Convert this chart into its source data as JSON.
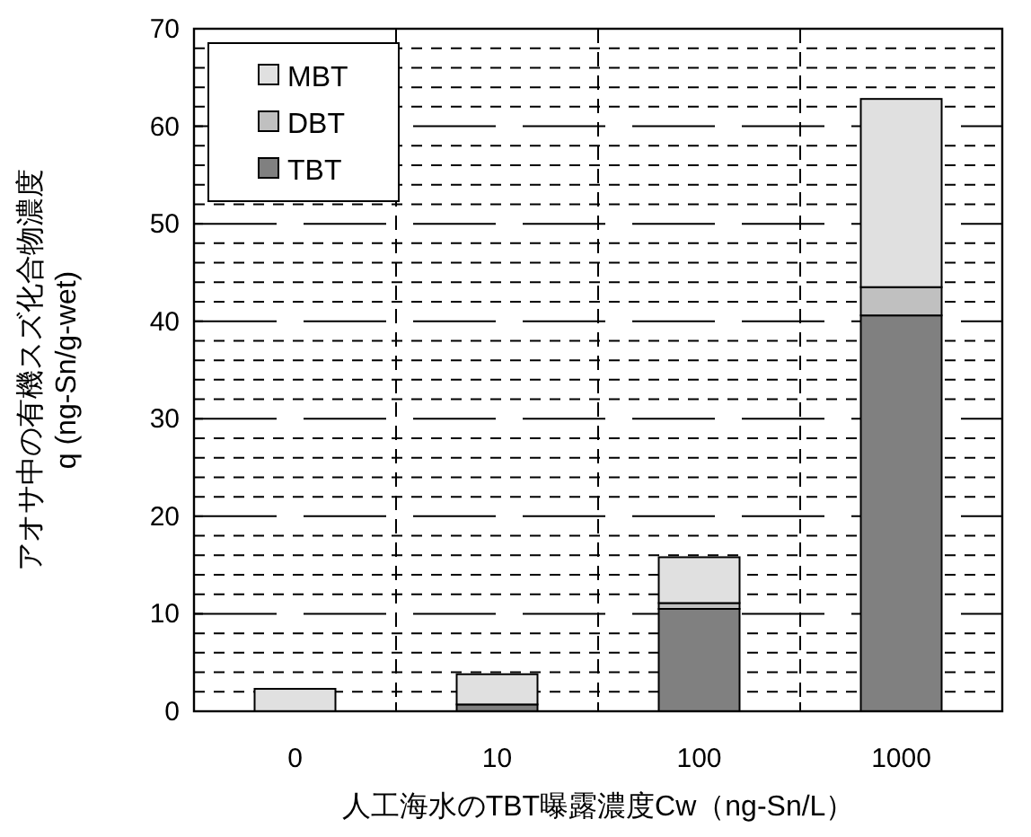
{
  "chart_data": {
    "type": "bar",
    "stacked": true,
    "xlabel": "人工海水のTBT曝露濃度Cw（ng-Sn/L）",
    "ylabel": "アオサ中の有機スズ化合物濃度\nq (ng-Sn/g-wet)",
    "categories": [
      "0",
      "10",
      "100",
      "1000"
    ],
    "series": [
      {
        "name": "TBT",
        "color": "#808080",
        "values": [
          0,
          0.7,
          10.5,
          40.6
        ]
      },
      {
        "name": "DBT",
        "color": "#c0c0c0",
        "values": [
          0,
          0,
          0.6,
          2.9
        ]
      },
      {
        "name": "MBT",
        "color": "#e0e0e0",
        "values": [
          2.3,
          3.1,
          4.7,
          19.3
        ]
      }
    ],
    "ylim": [
      0,
      70
    ],
    "yticks": [
      0,
      10,
      20,
      30,
      40,
      50,
      60,
      70
    ],
    "grid": true,
    "legend": "top left"
  }
}
